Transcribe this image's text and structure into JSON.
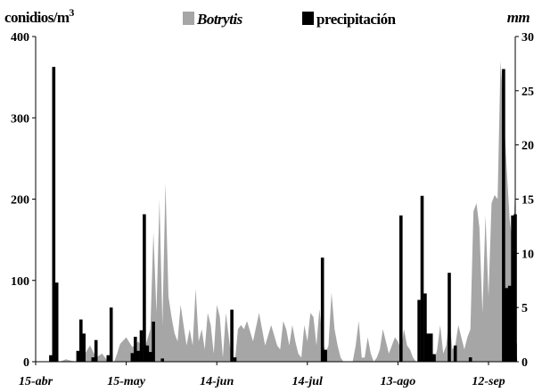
{
  "chart_data": {
    "type": "bar",
    "left_axis_label": "conidios/m",
    "left_axis_label_sup": "3",
    "right_axis_label": "mm",
    "left_ylim": [
      0,
      400
    ],
    "right_ylim": [
      0,
      30
    ],
    "left_ticks": [
      0,
      100,
      200,
      300,
      400
    ],
    "right_ticks": [
      0,
      5,
      10,
      15,
      20,
      25,
      30
    ],
    "x_day_range": [
      0,
      152
    ],
    "x_ticks": [
      {
        "day": 0,
        "label": "15-abr"
      },
      {
        "day": 30,
        "label": "15-may"
      },
      {
        "day": 60,
        "label": "14-jun"
      },
      {
        "day": 90,
        "label": "14-jul"
      },
      {
        "day": 120,
        "label": "13-ago"
      },
      {
        "day": 150,
        "label": "12-sep"
      }
    ],
    "legend": [
      {
        "label": "Botrytis",
        "italic": true,
        "color": "#a6a6a6"
      },
      {
        "label": "precipitación",
        "italic": false,
        "color": "#000000"
      }
    ],
    "series": [
      {
        "name": "Botrytis",
        "kind": "area",
        "axis": "left",
        "color": "#a6a6a6",
        "x": [
          0,
          4,
          6,
          8,
          10,
          12,
          14,
          16,
          18,
          20,
          22,
          24,
          26,
          27,
          28,
          30,
          32,
          34,
          36,
          38,
          39,
          40,
          41,
          42,
          43,
          44,
          45,
          46,
          47,
          48,
          49,
          50,
          51,
          52,
          53,
          54,
          55,
          56,
          57,
          58,
          59,
          60,
          61,
          62,
          63,
          64,
          65,
          66,
          67,
          68,
          69,
          70,
          72,
          74,
          76,
          78,
          80,
          81,
          82,
          83,
          84,
          85,
          86,
          87,
          88,
          89,
          90,
          91,
          92,
          93,
          94,
          95,
          96,
          97,
          98,
          99,
          100,
          101,
          102,
          103,
          104,
          105,
          106,
          107,
          108,
          109,
          110,
          111,
          112,
          113,
          114,
          115,
          116,
          117,
          118,
          119,
          120,
          121,
          122,
          123,
          124,
          125,
          126,
          127,
          128,
          129,
          130,
          131,
          132,
          133,
          134,
          135,
          136,
          137,
          138,
          139,
          140,
          141,
          142,
          143,
          144,
          145,
          146,
          147,
          148,
          149,
          150,
          151,
          152,
          153,
          154,
          155,
          156,
          157,
          158,
          159
        ],
        "values": [
          0,
          0,
          2,
          0,
          3,
          1,
          0,
          8,
          20,
          5,
          10,
          0,
          0,
          10,
          22,
          30,
          18,
          25,
          15,
          40,
          160,
          60,
          200,
          45,
          220,
          80,
          55,
          35,
          25,
          70,
          45,
          20,
          40,
          20,
          90,
          25,
          40,
          15,
          60,
          45,
          10,
          70,
          55,
          5,
          60,
          30,
          0,
          0,
          40,
          45,
          40,
          50,
          25,
          60,
          20,
          45,
          20,
          15,
          50,
          40,
          20,
          45,
          25,
          10,
          5,
          45,
          25,
          60,
          55,
          20,
          65,
          30,
          10,
          20,
          85,
          40,
          20,
          5,
          0,
          0,
          0,
          0,
          20,
          50,
          5,
          5,
          30,
          10,
          0,
          5,
          15,
          40,
          25,
          10,
          20,
          30,
          25,
          15,
          40,
          20,
          15,
          5,
          0,
          0,
          0,
          0,
          25,
          15,
          0,
          15,
          45,
          10,
          20,
          55,
          15,
          20,
          45,
          30,
          15,
          30,
          40,
          185,
          195,
          165,
          60,
          180,
          80,
          195,
          205,
          200,
          370,
          310,
          240,
          175,
          145,
          210
        ]
      },
      {
        "name": "precipitación",
        "kind": "bar",
        "axis": "right",
        "color": "#000000",
        "x": [
          5,
          6,
          7,
          14,
          15,
          16,
          19,
          20,
          24,
          25,
          32,
          33,
          34,
          35,
          36,
          37,
          38,
          39,
          42,
          65,
          66,
          95,
          96,
          121,
          127,
          128,
          129,
          130,
          131,
          132,
          137,
          139,
          144,
          155,
          156,
          157,
          158,
          159,
          160,
          163,
          164
        ],
        "values": [
          0.6,
          27.2,
          7.3,
          1,
          3.9,
          2.6,
          0.4,
          2,
          0.6,
          5,
          0.8,
          2.3,
          1,
          2.9,
          13.6,
          1.5,
          0.9,
          3.7,
          0.3,
          4.8,
          0.4,
          9.6,
          1.1,
          13.5,
          5.7,
          15.3,
          6.3,
          2.6,
          2.6,
          0.7,
          8.2,
          1.5,
          0.4,
          27,
          6.8,
          7,
          13.5,
          13.6,
          0.4,
          1.7,
          0.4
        ]
      }
    ]
  }
}
